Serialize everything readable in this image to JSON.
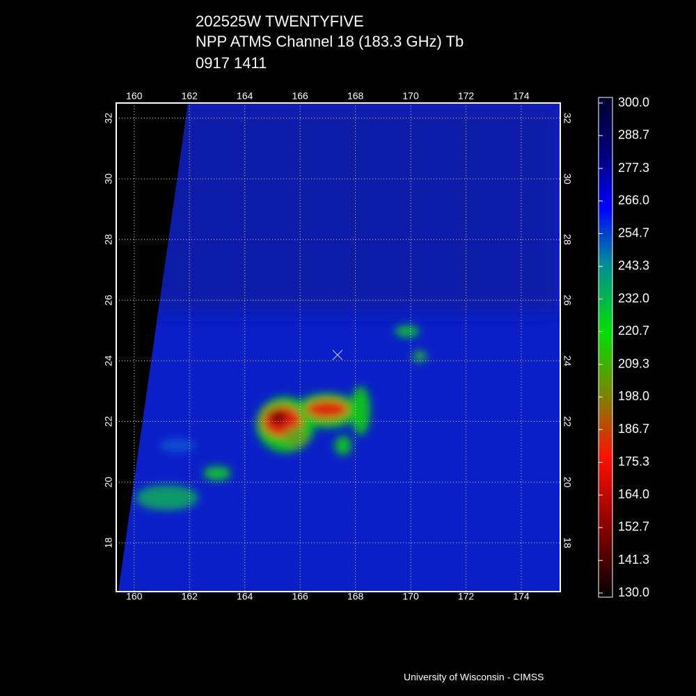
{
  "title": [
    "202525W TWENTYFIVE",
    "NPP   ATMS Channel 18 (183.3 GHz) Tb",
    "0917 1411"
  ],
  "map": {
    "xlim": [
      159.35,
      175.41
    ],
    "ylim": [
      16.39,
      32.5
    ],
    "xticks": [
      160,
      162,
      164,
      166,
      168,
      170,
      172,
      174
    ],
    "yticks": [
      18,
      20,
      22,
      24,
      26,
      28,
      30,
      32
    ]
  },
  "colorbar": {
    "range": [
      130,
      300
    ],
    "ticks": [
      {
        "value": 130,
        "label": "130.0"
      },
      {
        "value": 141.3,
        "label": "141.3"
      },
      {
        "value": 152.7,
        "label": "152.7"
      },
      {
        "value": 164,
        "label": "164.0"
      },
      {
        "value": 175.3,
        "label": "175.3"
      },
      {
        "value": 186.7,
        "label": "186.7"
      },
      {
        "value": 198,
        "label": "198.0"
      },
      {
        "value": 209.3,
        "label": "209.3"
      },
      {
        "value": 220.7,
        "label": "220.7"
      },
      {
        "value": 232,
        "label": "232.0"
      },
      {
        "value": 243.3,
        "label": "243.3"
      },
      {
        "value": 254.7,
        "label": "254.7"
      },
      {
        "value": 266,
        "label": "266.0"
      },
      {
        "value": 277.3,
        "label": "277.3"
      },
      {
        "value": 288.7,
        "label": "288.7"
      },
      {
        "value": 300,
        "label": "300.0"
      }
    ]
  },
  "credit": "University of Wisconsin - CIMSS"
}
